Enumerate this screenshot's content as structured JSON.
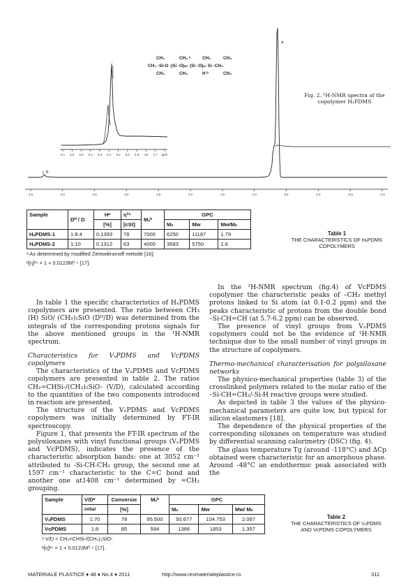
{
  "figure": {
    "caption": "Fig. 2. ¹H-NMR spectra of the copolymer HₓPDMS",
    "structure_labels": {
      "top_left": "CH₃",
      "top_mid": "CH₃ ᵃ",
      "top_right": "CH₃",
      "top_far": "CH₃",
      "chain": "CH₃ -Si-O -(Si -O)ₘ- (Si -O)ₙ- Si -CH₃",
      "bot_left": "CH₃",
      "bot_mid": "CH₃",
      "bot_right": "H ᵇ",
      "bot_far": "CH₃"
    },
    "peak_label_a": "a",
    "peak_label_b": "b",
    "inset_axis_ticks": [
      "6.1",
      "5.6",
      "5.5",
      "5.4",
      "5.3",
      "5.2",
      "5.1",
      "5.0",
      "4.9",
      "4.8",
      "4.7",
      "ppm"
    ],
    "main_axis_ticks": [
      "4.5",
      "4.0",
      "3.5",
      "3.0",
      "2.5",
      "2.0",
      "1.5",
      "1.0",
      "0.5",
      "0.0",
      "-0.5",
      "-1.0"
    ]
  },
  "table1": {
    "caption_title": "Table 1",
    "caption_text": "THE CHARACTERISTICS OF HₓPDMS COPOLYMERS",
    "headers": {
      "sample": "Sample",
      "dh": "Dᴴ / D",
      "h": "Hᵃ",
      "h_unit": "[%]",
      "eta": "η²⁵",
      "eta_unit": "[cSt]",
      "mv": "Mᵥᵇ",
      "gpc": "GPC",
      "mn": "Mₙ",
      "mw": "Mw",
      "mwmn": "Mw/Mₙ"
    },
    "rows": [
      {
        "sample": "HₓPDMS-1",
        "dh": "1:8.4",
        "h": "0.1393",
        "eta": "78",
        "mv": "7000",
        "mn": "6250",
        "mw": "11187",
        "mwmn": "1.79"
      },
      {
        "sample": "HₓPDMS-2",
        "dh": "1:10",
        "h": "0.1312",
        "eta": "63",
        "mv": "4000",
        "mn": "3583",
        "mw": "5750",
        "mwmn": "1.6"
      }
    ],
    "foot_a": "ᵃ As determined by modified Zerewitinonoff metode [16];",
    "foot_b": "ᵇ[η]²⁵ = 1 + 0.0123M⁰·⁵ [17]."
  },
  "left_col": {
    "p1": "In table 1 the specific characteristics of HₓPDMS copolymers are presented. The ratio between CH₃ (H) SiO/ (CH₃)₂SiO (Dᴴ/D) was determined from the integrals of the corresponding protons signals for the above mentioned groups in the ¹H-NMR spectrum.",
    "heading": "Characteristics for VₓPDMS and VcPDMS copolymers",
    "p2": "The characteristics of the VₓPDMS and VcPDMS copolymers are presented in table 2. The ratios CH₂=CHSi-/(CH₃)₂SiO- (V/D), calculated according to the quantities of the two components introduced in reaction are presented.",
    "p3": "The structure of the VₓPDMS and VcPDMS copolymers was initially determined by FT-IR spectroscopy.",
    "p4": "Figure 1, that presents the FT-IR spectrum of the polysiloxanes with vinyl functional groups (VₓPDMS and VcPDMS), indicates the presence of the characteristic absorption bands: one at 3052 cm⁻¹ attributed to -Si-CH-CH₂ group, the second one at 1597 cm⁻¹ characteristic to the C=C bond and another one at1408 cm⁻¹ determined by =CH₂ grouping."
  },
  "right_col": {
    "p1": "In the ¹H-NMR spectrum (fig.4) of VcPDMS copolymer the characteristic peaks of –CH₃ methyl protons linked to Si atom (at 0.1-0.2 ppm) and the peaks characteristic of protons from the double bond –Si-CH=CH (at 5.7-6.2 ppm) can be observed.",
    "p2": "The presence of vinyl groups from VₓPDMS copolymers could not be the evidence of ¹H-NMR technique due to the small number of vinyl groups in the structure of copolymers.",
    "heading": "Thermo-mechanical characterisation for polysiloxane networks",
    "p3": "The physico-mechanical properties (table 3) of the crosslinked polymers related to the molar ratio of the –Si-CH=CH₂/-Si-H reactive groups were studied.",
    "p4": "As depicted in table 3 the values of the physico-mechanical parameters are quite low, but typical for silicon elastomers [18].",
    "p5": "The dependence of the physical properties of the corresponding siloxanes on temperature was studied by differential scanning calorimetry (DSC) (fig. 4).",
    "p6": "The glass temperature Tg (around -118°C) and ΔCp obtained were characteristic for an amorphous phase. Around -48°C an endothermic peak associated with the"
  },
  "table2": {
    "caption_title": "Table 2",
    "caption_text": "THE CHARACTERISTICS OF VₓPDMS AND VcPDMS COPOLYMERS",
    "headers": {
      "sample": "Sample",
      "vd": "V/Dᵃ",
      "vd_sub": "initial",
      "conv": "Conversie",
      "conv_unit": "[%]",
      "mv": "Mᵥᵇ",
      "gpc": "GPC",
      "mn": "Mₙ",
      "mw": "Mw",
      "mwmn": "Mw/ Mₙ"
    },
    "rows": [
      {
        "sample": "VₓPDMS",
        "vd": "1:70",
        "conv": "78",
        "mv": "95.500",
        "mn": "50.677",
        "mw": "104.753",
        "mwmn": "2.067"
      },
      {
        "sample": "VcPDMS",
        "vd": "1:8",
        "conv": "85",
        "mv": "594",
        "mn": "1366",
        "mw": "1853",
        "mwmn": "1.357"
      }
    ],
    "foot_a": "ᵃ V/D = CH₂=CHSi-/(CH₃)₂SiO-",
    "foot_b": "ᵇ[η]²⁵ = 1 + 0.0123M⁰·⁵ [17]."
  },
  "footer": {
    "journal": "MATERIALE PLASTICE ♦ 48 ♦ No.4 ♦ 2011",
    "url": "http://www.revmaterialeplastice.ro",
    "page": "311"
  }
}
